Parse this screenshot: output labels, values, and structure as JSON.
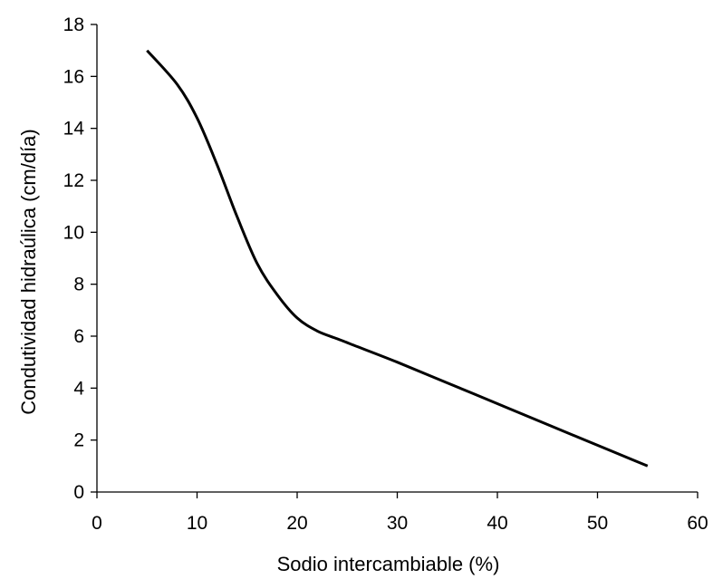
{
  "chart_data": {
    "type": "line",
    "title": "",
    "xlabel": "Sodio intercambiable (%)",
    "ylabel": "Condutividad hidraúlica (cm/día)",
    "xlim": [
      0,
      60
    ],
    "ylim": [
      0,
      18
    ],
    "xticks": [
      "0",
      "10",
      "20",
      "30",
      "40",
      "50",
      "60"
    ],
    "yticks": [
      "0",
      "2",
      "4",
      "6",
      "8",
      "10",
      "12",
      "14",
      "16",
      "18"
    ],
    "grid": false,
    "legend": "none",
    "series": [
      {
        "color": "#000000",
        "x": [
          5,
          8,
          10,
          12,
          14,
          16,
          18,
          20,
          22,
          24,
          26,
          30,
          35,
          40,
          45,
          50,
          55
        ],
        "y": [
          17.0,
          15.7,
          14.4,
          12.6,
          10.6,
          8.8,
          7.6,
          6.7,
          6.2,
          5.9,
          5.6,
          5.0,
          4.2,
          3.4,
          2.6,
          1.8,
          1.0
        ]
      }
    ]
  }
}
